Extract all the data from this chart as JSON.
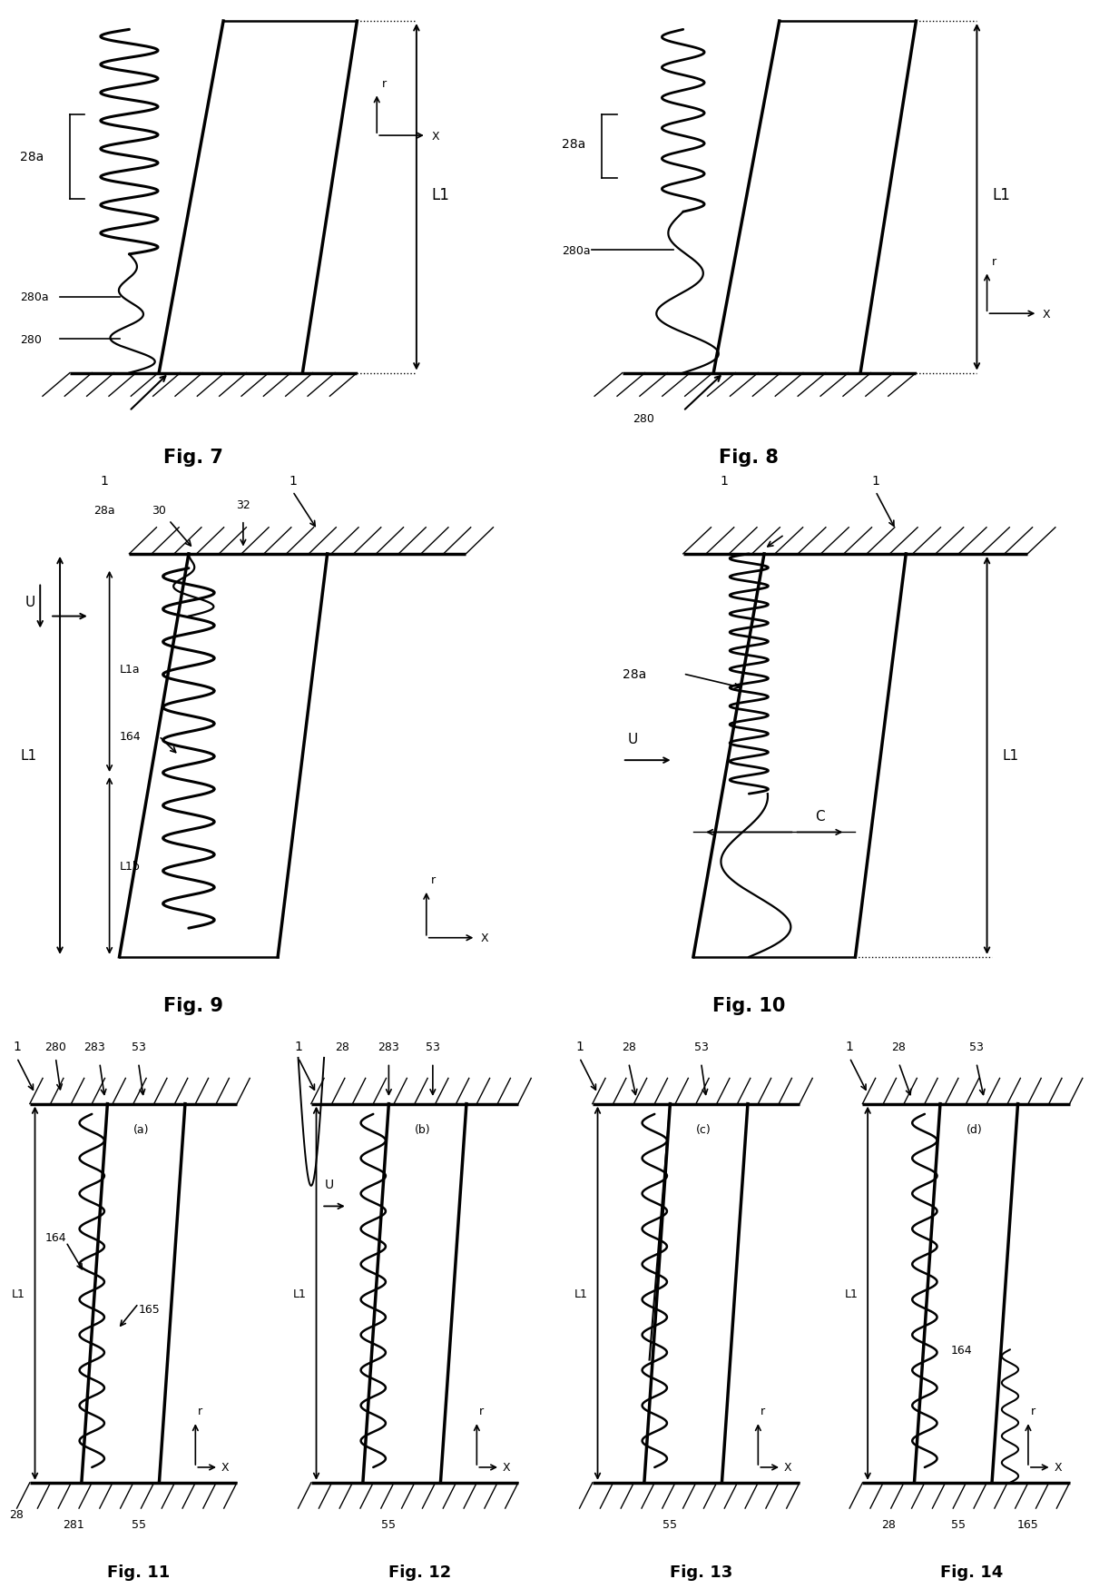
{
  "background": "#ffffff",
  "line_color": "#000000",
  "fig_width": 12.4,
  "fig_height": 17.62
}
